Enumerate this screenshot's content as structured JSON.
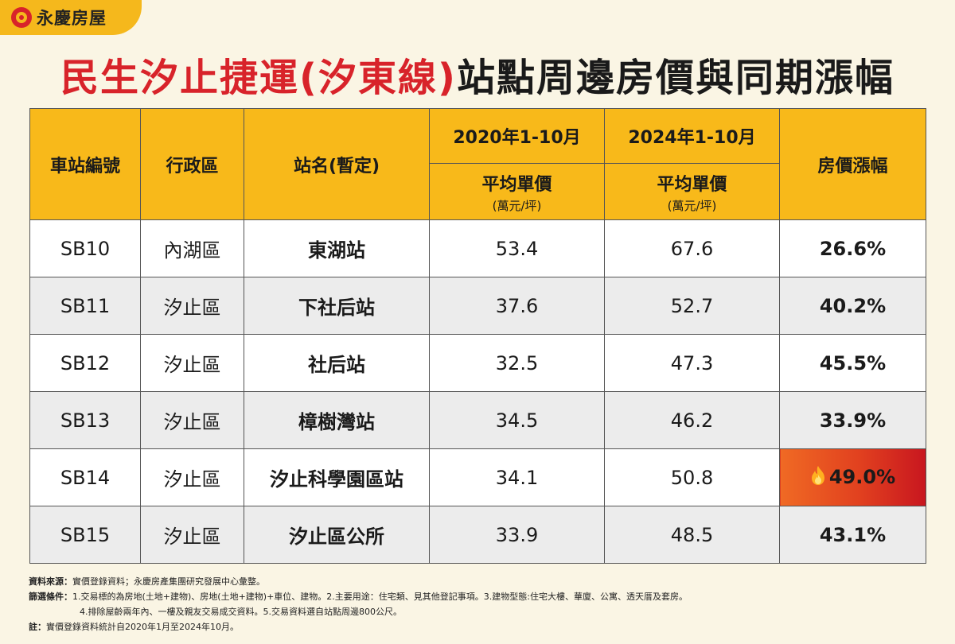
{
  "brand": {
    "name": "永慶房屋"
  },
  "title": {
    "part_red": "民生汐止捷運(汐東線)",
    "part_black": "站點周邊房價與同期漲幅"
  },
  "table": {
    "headers": {
      "station_code": "車站編號",
      "district": "行政區",
      "station_name": "站名(暫定)",
      "period_2020": "2020年1-10月",
      "period_2024": "2024年1-10月",
      "avg_price": "平均單價",
      "unit": "(萬元/坪)",
      "growth": "房價漲幅"
    },
    "rows": [
      {
        "code": "SB10",
        "district": "內湖區",
        "station": "東湖站",
        "price_2020": "53.4",
        "price_2024": "67.6",
        "growth": "26.6%"
      },
      {
        "code": "SB11",
        "district": "汐止區",
        "station": "下社后站",
        "price_2020": "37.6",
        "price_2024": "52.7",
        "growth": "40.2%"
      },
      {
        "code": "SB12",
        "district": "汐止區",
        "station": "社后站",
        "price_2020": "32.5",
        "price_2024": "47.3",
        "growth": "45.5%"
      },
      {
        "code": "SB13",
        "district": "汐止區",
        "station": "樟樹灣站",
        "price_2020": "34.5",
        "price_2024": "46.2",
        "growth": "33.9%"
      },
      {
        "code": "SB14",
        "district": "汐止區",
        "station": "汐止科學園區站",
        "price_2020": "34.1",
        "price_2024": "50.8",
        "growth": "49.0%"
      },
      {
        "code": "SB15",
        "district": "汐止區",
        "station": "汐止區公所",
        "price_2020": "33.9",
        "price_2024": "48.5",
        "growth": "43.1%"
      }
    ],
    "highlight_icon": "fire-icon"
  },
  "notes": {
    "source_label": "資料來源：",
    "source_text": "實價登錄資料；永慶房產集團研究發展中心彙整。",
    "filter_label": "篩選條件：",
    "filter_text_1": "1.交易標的為房地(土地+建物)、房地(土地+建物)+車位、建物。2.主要用途：住宅類、見其他登記事項。3.建物型態:住宅大樓、華廈、公寓、透天厝及套房。",
    "filter_text_2": "4.排除屋齡兩年內、一樓及親友交易成交資料。5.交易資料選自站點周邊800公尺。",
    "note_label": "註：",
    "note_text": "實價登錄資料統計自2020年1月至2024年10月。"
  },
  "colors": {
    "brand_yellow": "#f5b81c",
    "header_yellow": "#f8b91a",
    "title_red": "#d8232a",
    "hot_cell": "#d8232a"
  }
}
